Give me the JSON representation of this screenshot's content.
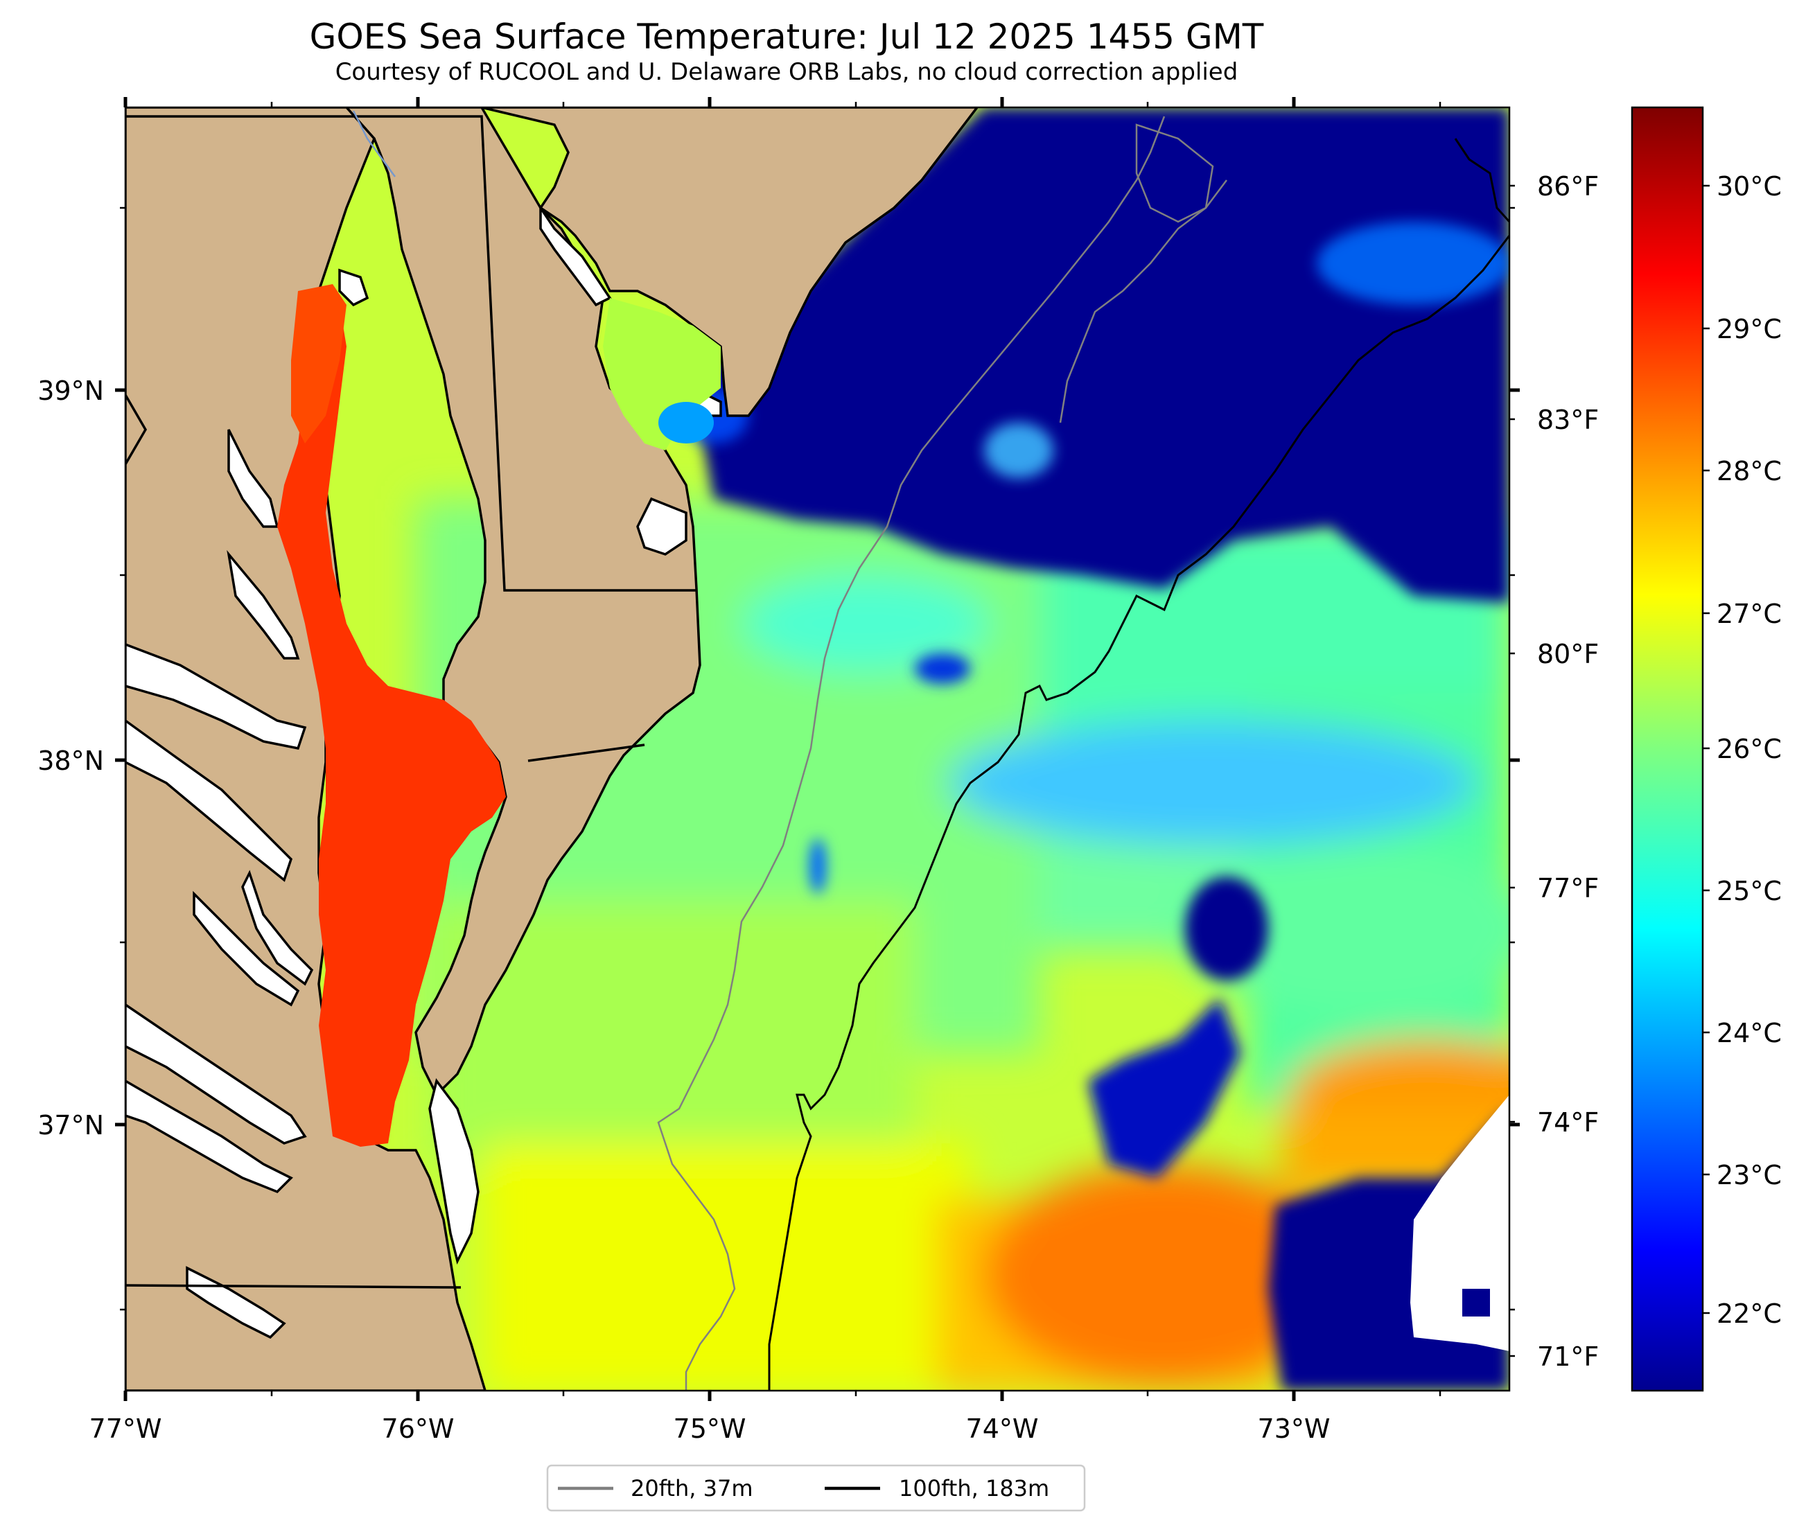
{
  "title": "GOES Sea Surface Temperature: Jul 12 2025 1455 GMT",
  "subtitle": "Courtesy of RUCOOL and U. Delaware ORB Labs, no cloud correction applied",
  "map": {
    "x_ticks": [
      "77°W",
      "76°W",
      "75°W",
      "74°W",
      "73°W"
    ],
    "y_ticks": [
      "39°N",
      "38°N",
      "37°N"
    ],
    "land_color": "#d2b48c",
    "ocean_cold_color": "#00008f"
  },
  "colorbar": {
    "celsius_labels": [
      "30°C",
      "29°C",
      "28°C",
      "27°C",
      "26°C",
      "25°C",
      "24°C",
      "23°C",
      "22°C"
    ],
    "fahrenheit_labels": [
      "86°F",
      "83°F",
      "80°F",
      "77°F",
      "74°F",
      "71°F"
    ],
    "colormap": "jet",
    "range_celsius": [
      21.5,
      30.5
    ]
  },
  "legend": {
    "items": [
      {
        "label": "20fth, 37m",
        "color": "#808080"
      },
      {
        "label": "100fth, 183m",
        "color": "#000000"
      }
    ]
  }
}
